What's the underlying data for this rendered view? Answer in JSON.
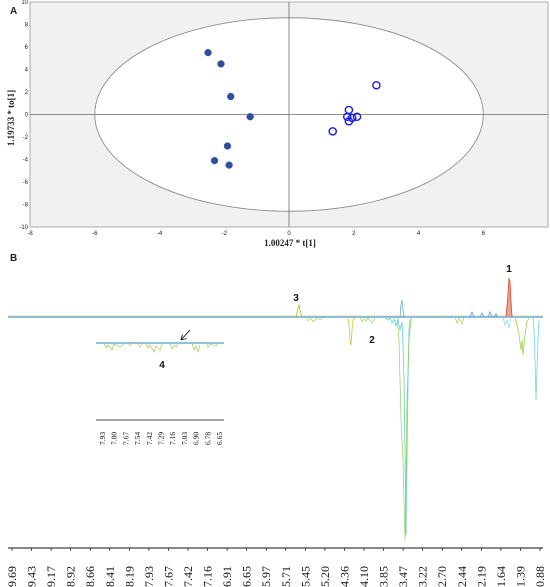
{
  "chart_data": [
    {
      "panel": "A",
      "type": "scatter",
      "xlabel": "1.00247 * t[1]",
      "ylabel": "1.19733 * to[1]",
      "xlim": [
        -8,
        8
      ],
      "ylim": [
        -10,
        10
      ],
      "xticks": [
        -8,
        -6,
        -4,
        -2,
        0,
        2,
        4,
        6
      ],
      "yticks": [
        10,
        8,
        6,
        4,
        2,
        0,
        -2,
        -4,
        -6,
        -8,
        -10
      ],
      "grid": false,
      "ellipse": {
        "cx": 0,
        "rx": 6,
        "ry": 8.6
      },
      "series": [
        {
          "marker": "filled-circle",
          "color": "#2f4f9e",
          "points": [
            [
              -2.5,
              5.5
            ],
            [
              -2.1,
              4.5
            ],
            [
              -1.8,
              1.6
            ],
            [
              -1.2,
              -0.2
            ],
            [
              -1.9,
              -2.8
            ],
            [
              -2.3,
              -4.1
            ],
            [
              -1.85,
              -4.5
            ]
          ]
        },
        {
          "marker": "open-circle",
          "color": "#1a1ae6",
          "points": [
            [
              2.7,
              2.6
            ],
            [
              1.85,
              0.4
            ],
            [
              1.8,
              -0.2
            ],
            [
              1.95,
              -0.3
            ],
            [
              2.1,
              -0.2
            ],
            [
              1.85,
              -0.6
            ],
            [
              1.35,
              -1.5
            ]
          ]
        }
      ]
    },
    {
      "panel": "B",
      "type": "line",
      "xlabel": "",
      "ylabel": "",
      "x_reversed": true,
      "xticks": [
        "9.69",
        "9.43",
        "9.17",
        "8.92",
        "8.66",
        "8.41",
        "8.19",
        "7.93",
        "7.67",
        "7.42",
        "7.16",
        "6.91",
        "6.65",
        "5.97",
        "5.71",
        "5.45",
        "5.20",
        "4.36",
        "4.10",
        "3.85",
        "3.47",
        "3.22",
        "2.70",
        "2.44",
        "2.19",
        "1.64",
        "1.39",
        "0.88"
      ],
      "peak_labels": [
        {
          "label": "1",
          "ppm": 1.3
        },
        {
          "label": "2",
          "ppm": 3.9
        },
        {
          "label": "3",
          "ppm": 5.3
        },
        {
          "label": "4",
          "ppm": 7.4
        }
      ],
      "inset_xticks": [
        "7.93",
        "7.80",
        "7.67",
        "7.54",
        "7.42",
        "7.29",
        "7.16",
        "7.03",
        "6.90",
        "6.78",
        "6.65"
      ],
      "colors": {
        "peak1": "#e04a2f",
        "baseline": "#4a9fd8",
        "neg": "#9ad24f",
        "deep": "#6fd3e0",
        "yellow": "#d7c84a"
      }
    }
  ],
  "labels": {
    "panel_a": "A",
    "panel_b": "B"
  }
}
